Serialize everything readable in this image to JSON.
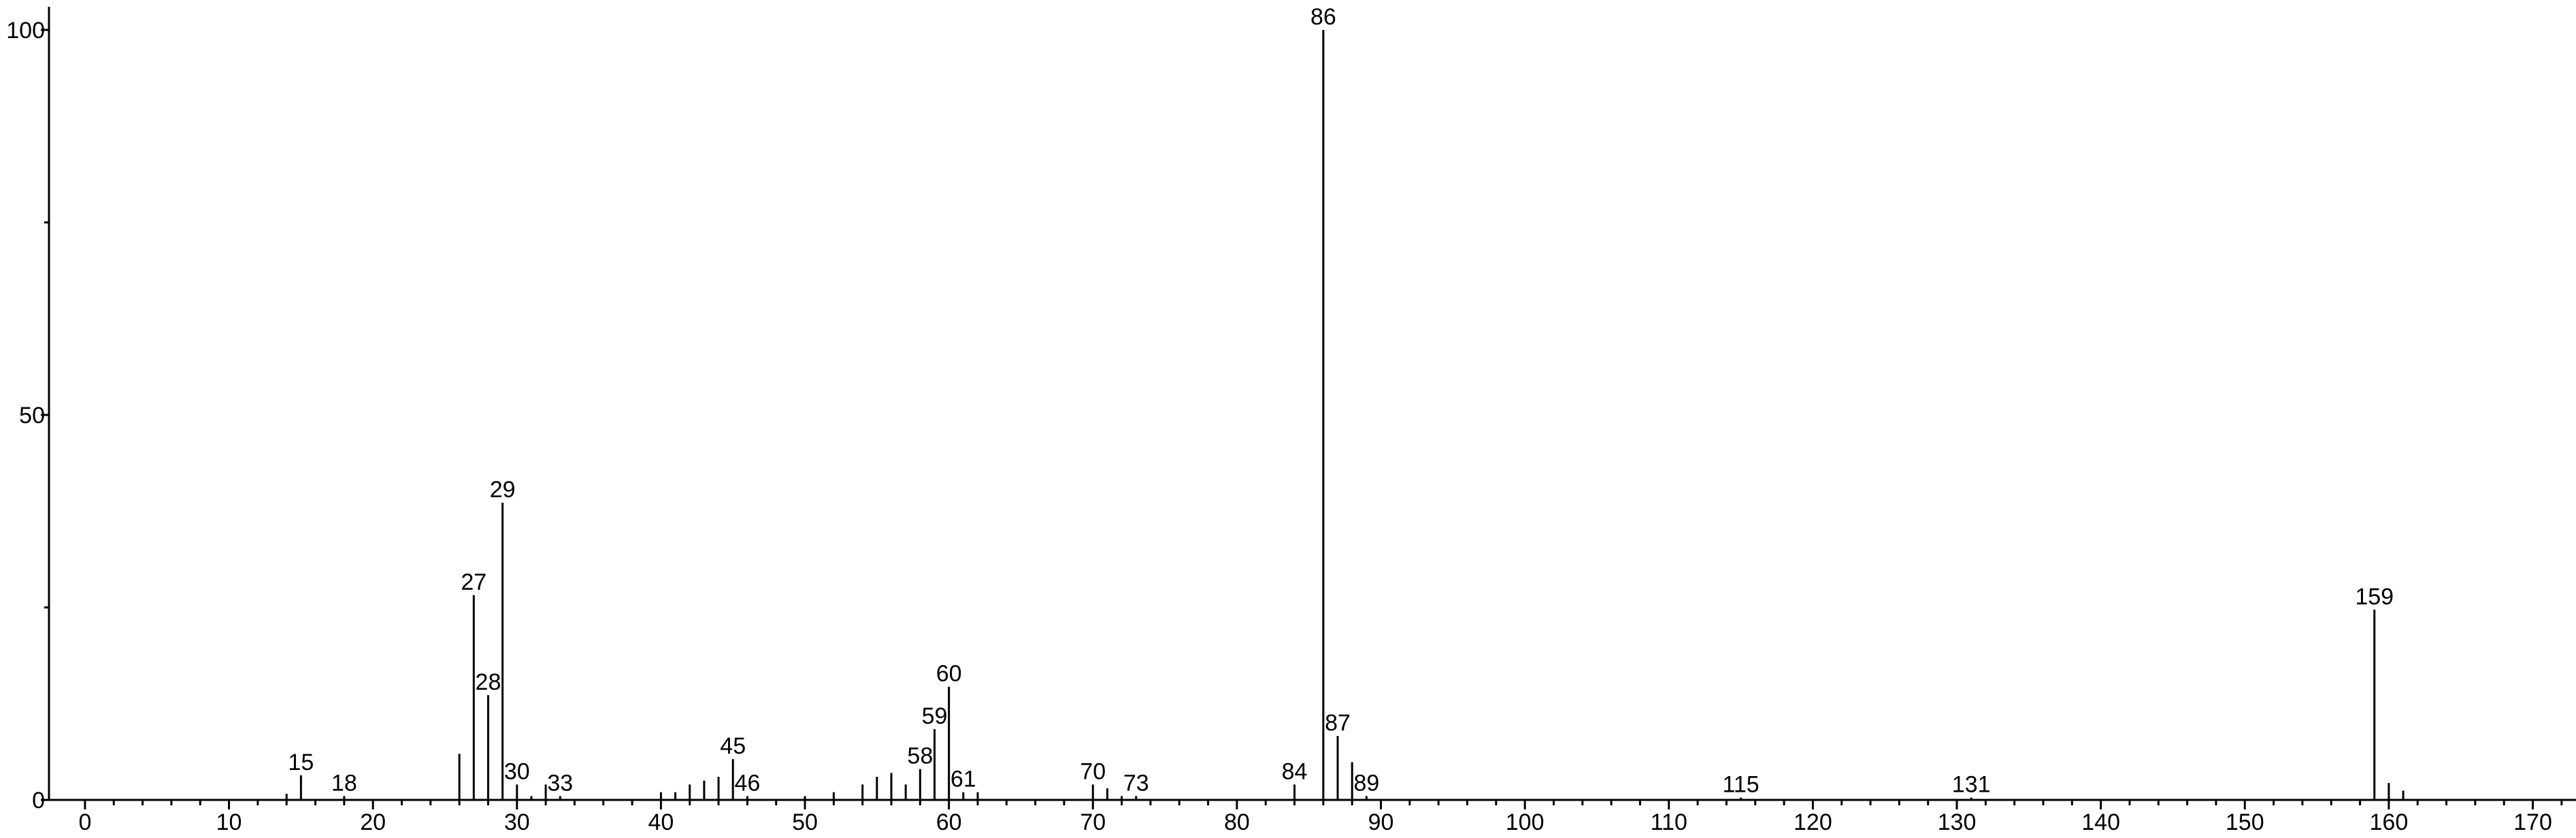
{
  "chart_data": {
    "type": "stem",
    "x": [
      14,
      15,
      18,
      26,
      27,
      28,
      29,
      30,
      31,
      32,
      33,
      40,
      41,
      42,
      43,
      44,
      45,
      46,
      50,
      52,
      54,
      55,
      56,
      57,
      58,
      59,
      60,
      61,
      62,
      70,
      71,
      72,
      73,
      84,
      86,
      87,
      88,
      89,
      115,
      131,
      159,
      160,
      161
    ],
    "values": [
      0.8,
      3.2,
      0.5,
      6,
      26.6,
      13.6,
      38.6,
      2,
      0.5,
      2,
      0.5,
      1,
      1,
      2,
      2.5,
      3,
      5.3,
      0.5,
      0.5,
      1,
      2,
      3,
      3.5,
      2,
      4,
      9.2,
      14.7,
      1,
      1,
      2,
      1.5,
      0.5,
      0.5,
      2,
      100,
      8.3,
      4.9,
      0.5,
      0.3,
      0.3,
      24.7,
      2.2,
      1.2
    ],
    "peak_labels": [
      null,
      15,
      18,
      null,
      27,
      28,
      29,
      30,
      null,
      null,
      33,
      null,
      null,
      null,
      null,
      null,
      45,
      46,
      null,
      null,
      null,
      null,
      null,
      null,
      58,
      59,
      60,
      61,
      null,
      70,
      null,
      null,
      73,
      84,
      86,
      87,
      null,
      89,
      115,
      131,
      159,
      null,
      null
    ],
    "color": "#000000",
    "xlim": [
      -2.5,
      173
    ],
    "ylim": [
      0,
      103
    ],
    "xticks": [
      0,
      10,
      20,
      30,
      40,
      50,
      60,
      70,
      80,
      90,
      100,
      110,
      120,
      130,
      140,
      150,
      160,
      170
    ],
    "xminorticks": [
      2,
      4,
      6,
      8,
      12,
      14,
      16,
      18,
      22,
      24,
      26,
      28,
      32,
      34,
      36,
      38,
      42,
      44,
      46,
      48,
      52,
      54,
      56,
      58,
      62,
      64,
      66,
      68,
      72,
      74,
      76,
      78,
      82,
      84,
      86,
      88,
      92,
      94,
      96,
      98,
      102,
      104,
      106,
      108,
      112,
      114,
      116,
      118,
      122,
      124,
      126,
      128,
      132,
      134,
      136,
      138,
      142,
      144,
      146,
      148,
      152,
      154,
      156,
      158,
      162,
      164,
      166,
      168,
      172
    ],
    "yticks": [
      0,
      50,
      100
    ],
    "yminorticks": [
      25,
      75
    ]
  }
}
